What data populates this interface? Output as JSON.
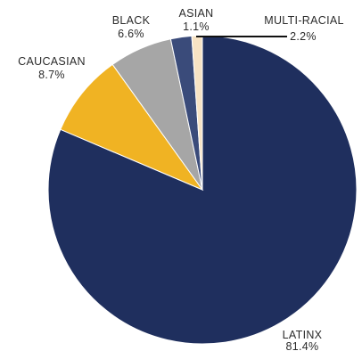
{
  "chart_data": {
    "type": "pie",
    "title": "",
    "categories": [
      "LATINX",
      "CAUCASIAN",
      "BLACK",
      "MULTI-RACIAL",
      "ASIAN"
    ],
    "values": [
      81.4,
      8.7,
      6.6,
      2.2,
      1.1
    ],
    "value_labels": [
      "81.4%",
      "8.7%",
      "6.6%",
      "2.2%",
      "1.1%"
    ],
    "colors": [
      "#1f2f5e",
      "#f0b323",
      "#a6a6a6",
      "#3a4b7a",
      "#f7e3c4"
    ],
    "start_angle_deg": 0,
    "direction": "clockwise",
    "legend": "none"
  }
}
